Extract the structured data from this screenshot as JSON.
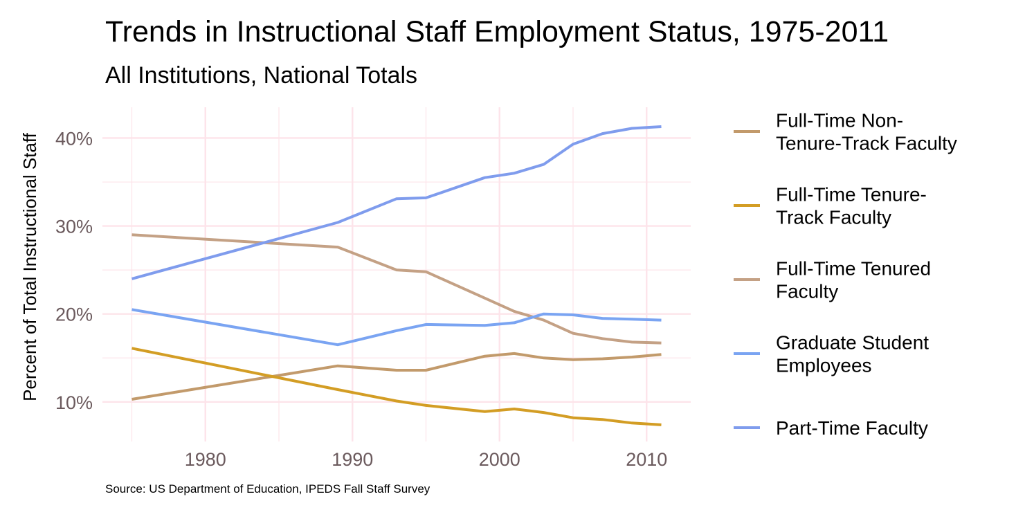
{
  "title": "Trends in Instructional Staff Employment Status, 1975-2011",
  "subtitle": "All Institutions, National Totals",
  "caption": "Source: US Department of Education, IPEDS Fall Staff Survey",
  "chart_data": {
    "type": "line",
    "title": "Trends in Instructional Staff Employment Status, 1975-2011",
    "subtitle": "All Institutions, National Totals",
    "xlabel": "",
    "ylabel": "Percent of Total Instructional Staff",
    "xlim": [
      1973,
      2013
    ],
    "ylim": [
      5.5,
      43.5
    ],
    "xticks": [
      1980,
      1990,
      2000,
      2010
    ],
    "yticks": [
      10,
      20,
      30,
      40
    ],
    "ytick_format": "percent",
    "grid": true,
    "grid_color": "#fde4ea",
    "legend_position": "right",
    "series": [
      {
        "name": "Full-Time Non-Tenure-Track Faculty",
        "legend_lines": [
          "Full-Time Non-",
          "Tenure-Track Faculty"
        ],
        "color": "#c29a6b",
        "x": [
          1975,
          1989,
          1993,
          1995,
          1999,
          2001,
          2003,
          2005,
          2007,
          2009,
          2011
        ],
        "y": [
          10.3,
          14.1,
          13.6,
          13.6,
          15.2,
          15.5,
          15.0,
          14.8,
          14.9,
          15.1,
          15.4
        ]
      },
      {
        "name": "Full-Time Tenure-Track Faculty",
        "legend_lines": [
          "Full-Time Tenure-",
          "Track Faculty"
        ],
        "color": "#d39d24",
        "x": [
          1975,
          1989,
          1993,
          1995,
          1999,
          2001,
          2003,
          2005,
          2007,
          2009,
          2011
        ],
        "y": [
          16.1,
          11.4,
          10.1,
          9.6,
          8.9,
          9.2,
          8.8,
          8.2,
          8.0,
          7.6,
          7.4
        ]
      },
      {
        "name": "Full-Time Tenured Faculty",
        "legend_lines": [
          "Full-Time Tenured",
          "Faculty"
        ],
        "color": "#c4a185",
        "x": [
          1975,
          1989,
          1993,
          1995,
          1999,
          2001,
          2003,
          2005,
          2007,
          2009,
          2011
        ],
        "y": [
          29.0,
          27.6,
          25.0,
          24.8,
          21.8,
          20.3,
          19.3,
          17.8,
          17.2,
          16.8,
          16.7
        ]
      },
      {
        "name": "Graduate Student Employees",
        "legend_lines": [
          "Graduate Student",
          "Employees"
        ],
        "color": "#7aa4f2",
        "x": [
          1975,
          1989,
          1993,
          1995,
          1999,
          2001,
          2003,
          2005,
          2007,
          2009,
          2011
        ],
        "y": [
          20.5,
          16.5,
          18.1,
          18.8,
          18.7,
          19.0,
          20.0,
          19.9,
          19.5,
          19.4,
          19.3
        ]
      },
      {
        "name": "Part-Time Faculty",
        "legend_lines": [
          "Part-Time Faculty"
        ],
        "color": "#7f9ced",
        "x": [
          1975,
          1989,
          1993,
          1995,
          1999,
          2001,
          2003,
          2005,
          2007,
          2009,
          2011
        ],
        "y": [
          24.0,
          30.4,
          33.1,
          33.2,
          35.5,
          36.0,
          37.0,
          39.3,
          40.5,
          41.1,
          41.3
        ]
      }
    ]
  }
}
